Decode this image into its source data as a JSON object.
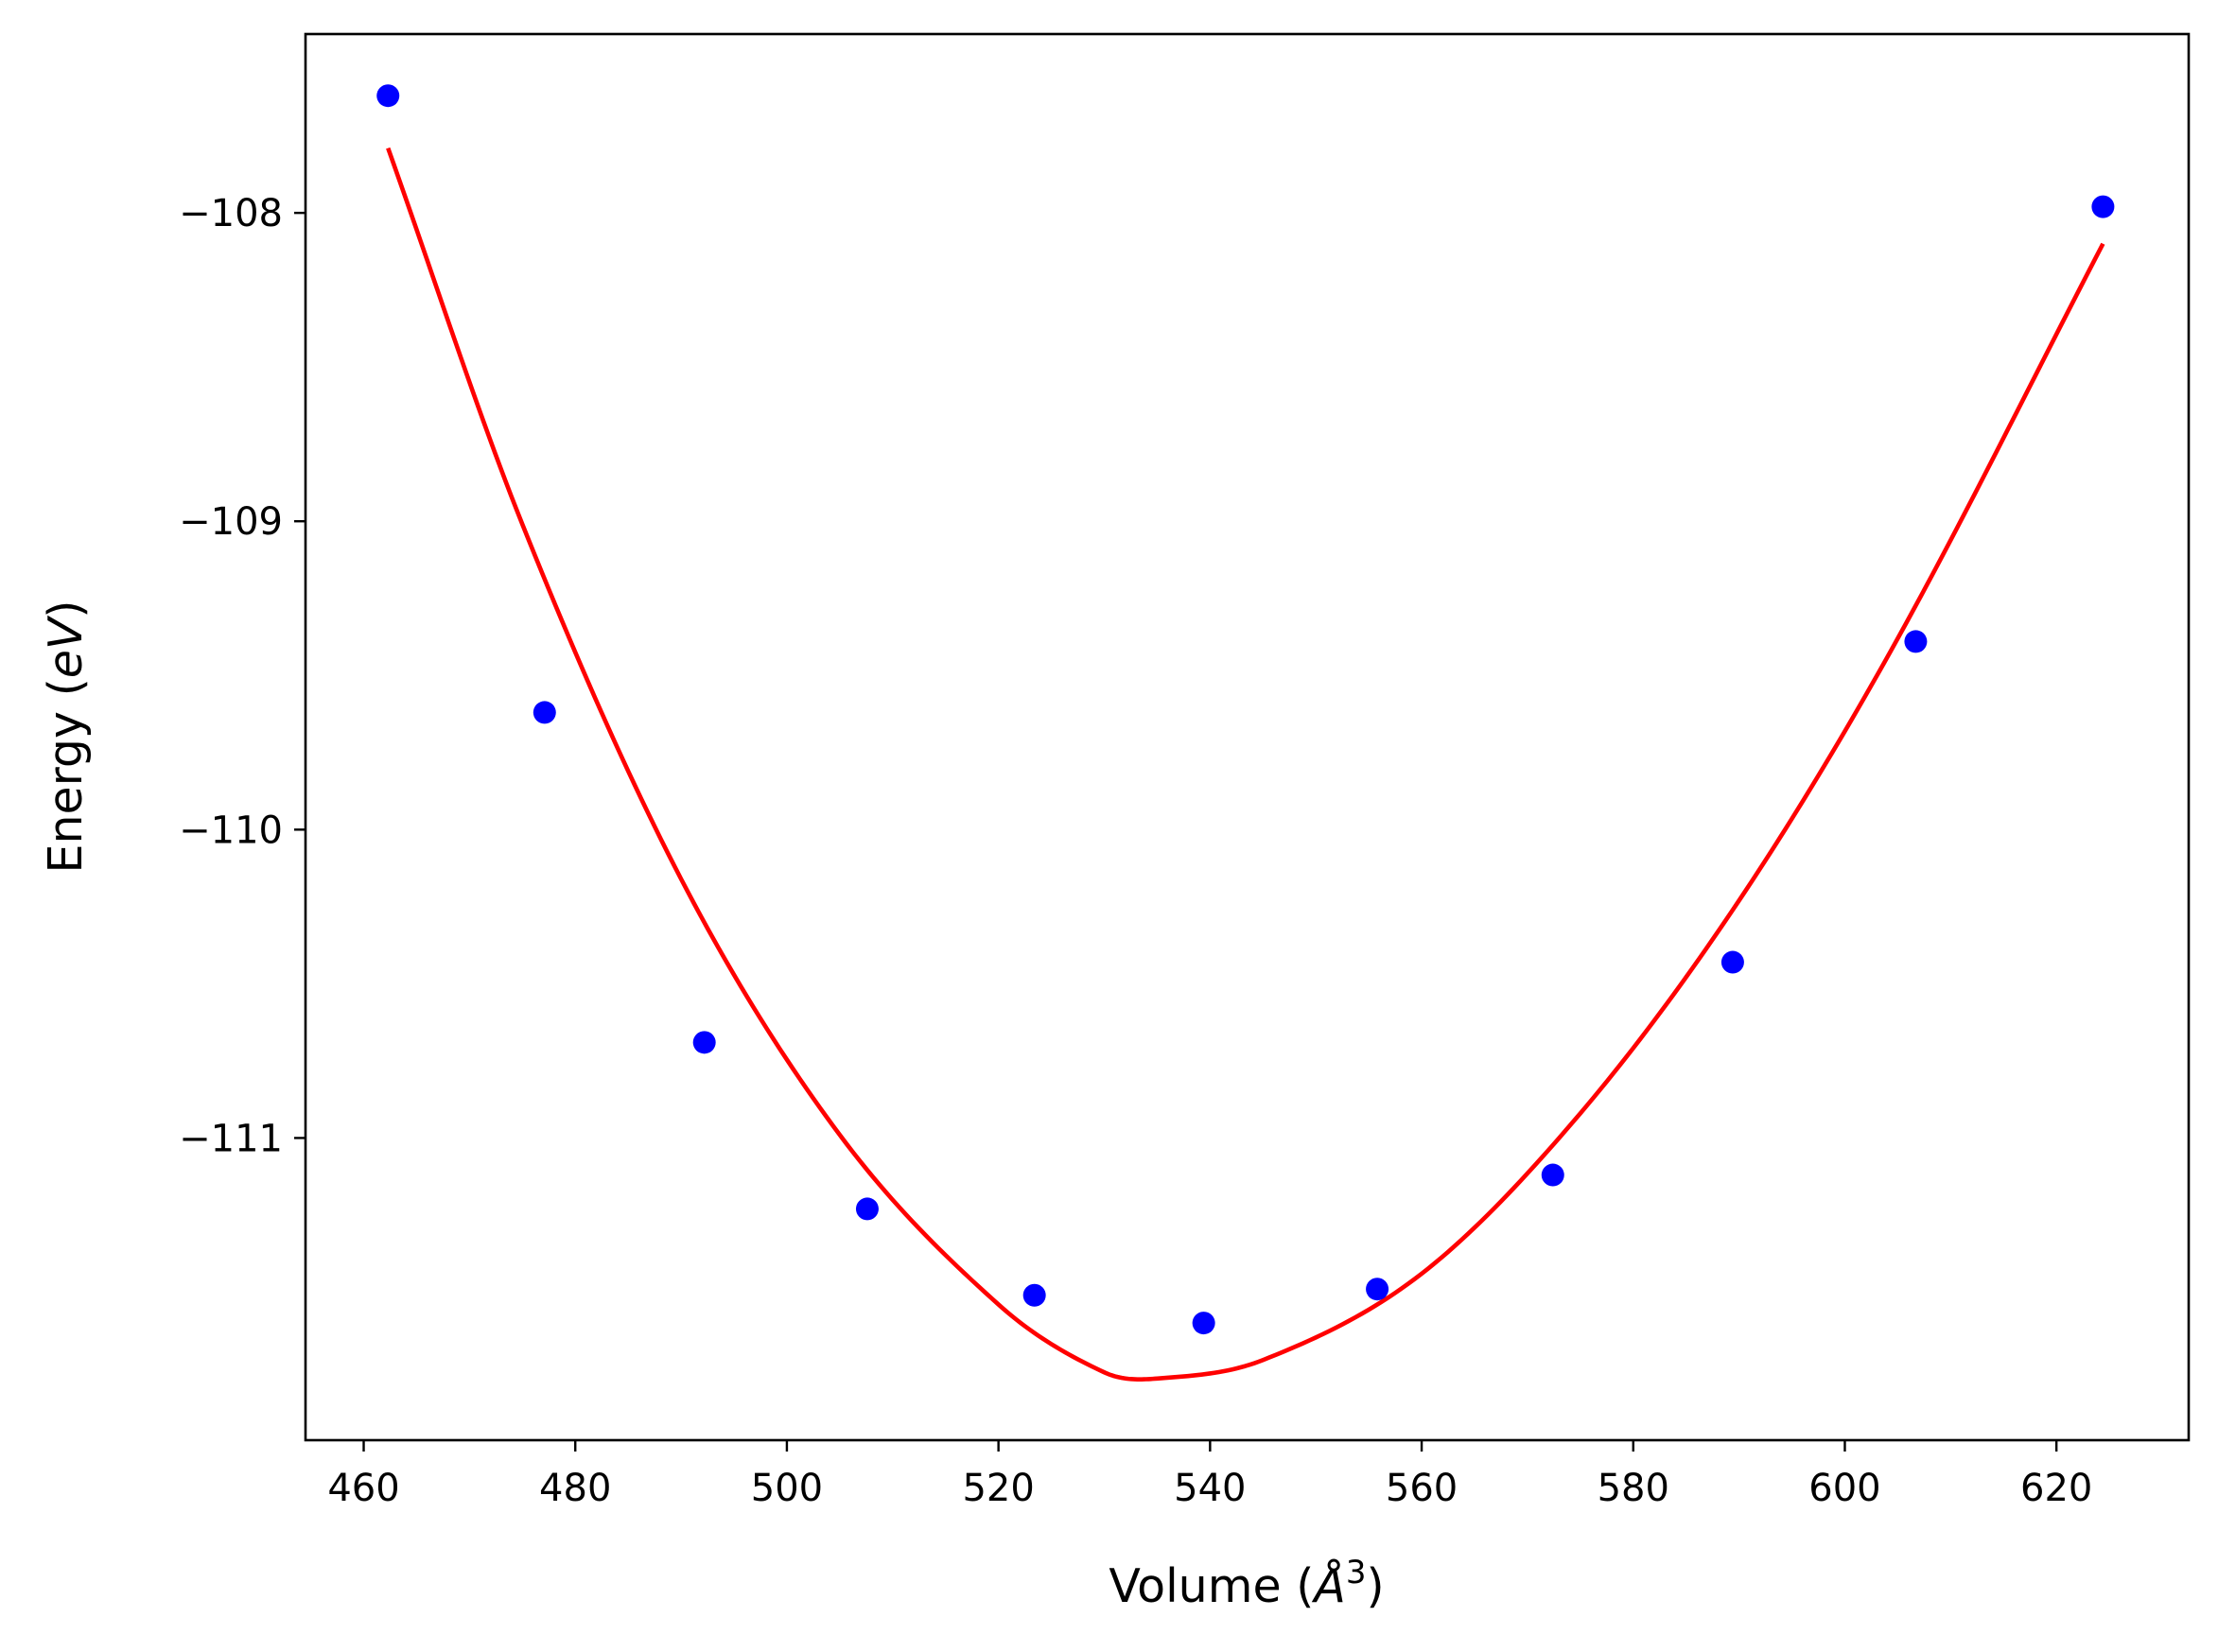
{
  "chart_data": {
    "type": "scatter",
    "xlabel": "Volume (",
    "xlabel_symbol": "Å",
    "xlabel_exp": "3",
    "xlabel_close": ")",
    "ylabel": "Energy (",
    "ylabel_unit": "eV",
    "ylabel_close": ")",
    "xlim": [
      454.5,
      632.5
    ],
    "ylim": [
      -111.98,
      -107.42
    ],
    "xticks": [
      460,
      480,
      500,
      520,
      540,
      560,
      580,
      600,
      620
    ],
    "xtick_labels": [
      "460",
      "480",
      "500",
      "520",
      "540",
      "560",
      "580",
      "600",
      "620"
    ],
    "yticks": [
      -108,
      -109,
      -110,
      -111
    ],
    "ytick_labels": [
      "−108",
      "−109",
      "−110",
      "−111"
    ],
    "grid": false,
    "series": [
      {
        "kind": "points",
        "color": "#0000ff",
        "x": [
          462.3,
          477.1,
          492.2,
          507.6,
          523.4,
          539.4,
          555.8,
          572.4,
          589.4,
          606.7,
          624.4
        ],
        "y": [
          -107.62,
          -109.62,
          -110.69,
          -111.23,
          -111.51,
          -111.6,
          -111.49,
          -111.12,
          -110.43,
          -109.39,
          -107.98
        ]
      },
      {
        "kind": "fit-curve",
        "color": "#ff0000",
        "x": [
          462.3,
          475,
          490,
          505,
          520,
          530,
          535,
          545,
          560,
          575,
          590,
          605,
          624.4
        ],
        "y": [
          -107.79,
          -109.01,
          -110.16,
          -110.99,
          -111.54,
          -111.76,
          -111.78,
          -111.72,
          -111.44,
          -110.92,
          -110.23,
          -109.38,
          -108.1
        ]
      }
    ]
  }
}
